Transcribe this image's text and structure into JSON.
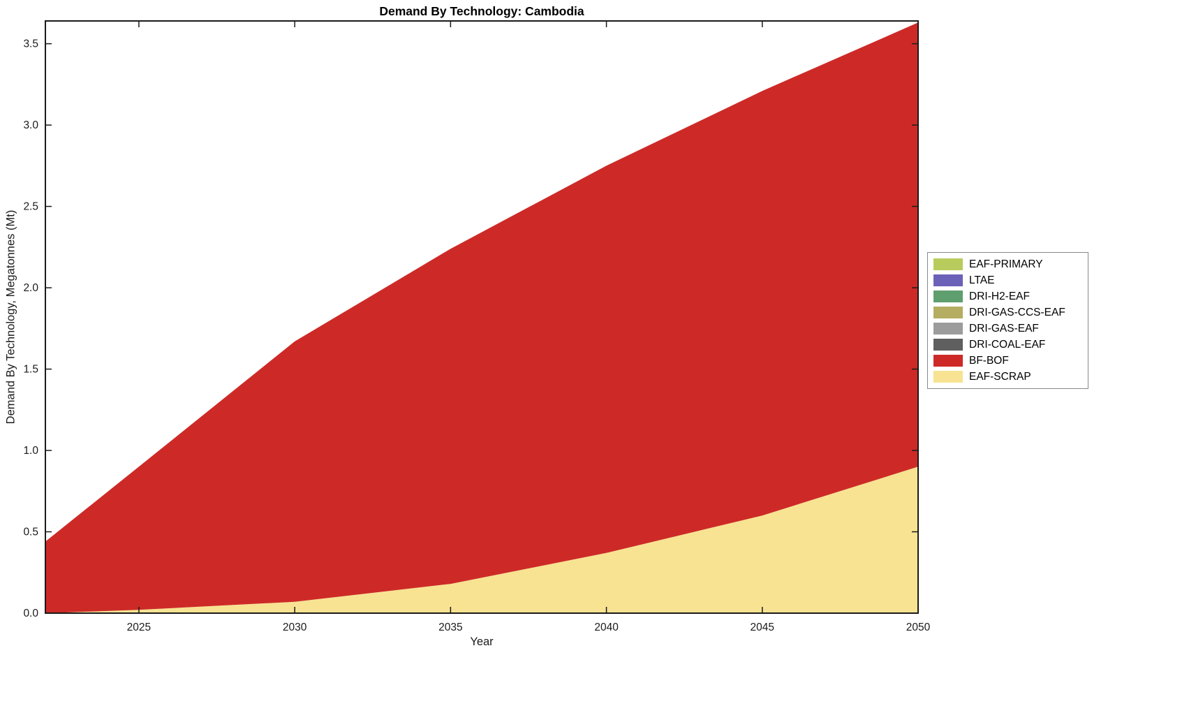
{
  "chart_data": {
    "type": "area",
    "stacked": true,
    "title": "Demand By Technology: Cambodia",
    "xlabel": "Year",
    "ylabel": "Demand By Technology, Megatonnes (Mt)",
    "x": [
      2022,
      2025,
      2030,
      2035,
      2040,
      2045,
      2050
    ],
    "xlim": [
      2022,
      2050
    ],
    "ylim": [
      0,
      3.64
    ],
    "xticks": [
      2025,
      2030,
      2035,
      2040,
      2045,
      2050
    ],
    "yticks": [
      0,
      0.5,
      1,
      1.5,
      2,
      2.5,
      3,
      3.5
    ],
    "grid": false,
    "legend_position": "right-outside",
    "stack_order": [
      "EAF-SCRAP",
      "BF-BOF",
      "DRI-COAL-EAF",
      "DRI-GAS-EAF",
      "DRI-GAS-CCS-EAF",
      "DRI-H2-EAF",
      "LTAE",
      "EAF-PRIMARY"
    ],
    "series": [
      {
        "name": "EAF-SCRAP",
        "color": "#f7e392",
        "values": [
          0.0,
          0.02,
          0.07,
          0.18,
          0.37,
          0.6,
          0.9
        ]
      },
      {
        "name": "BF-BOF",
        "color": "#cd2a27",
        "values": [
          0.44,
          0.88,
          1.6,
          2.06,
          2.38,
          2.61,
          2.73
        ]
      },
      {
        "name": "DRI-COAL-EAF",
        "color": "#5f5f5f",
        "values": [
          0,
          0,
          0,
          0,
          0,
          0,
          0
        ]
      },
      {
        "name": "DRI-GAS-EAF",
        "color": "#9c9c9c",
        "values": [
          0,
          0,
          0,
          0,
          0,
          0,
          0
        ]
      },
      {
        "name": "DRI-GAS-CCS-EAF",
        "color": "#b4ad62",
        "values": [
          0,
          0,
          0,
          0,
          0,
          0,
          0
        ]
      },
      {
        "name": "DRI-H2-EAF",
        "color": "#5f9e6e",
        "values": [
          0,
          0,
          0,
          0,
          0,
          0,
          0
        ]
      },
      {
        "name": "LTAE",
        "color": "#6b61b8",
        "values": [
          0,
          0,
          0,
          0,
          0,
          0,
          0
        ]
      },
      {
        "name": "EAF-PRIMARY",
        "color": "#b8cc5e",
        "values": [
          0,
          0,
          0,
          0,
          0,
          0,
          0
        ]
      }
    ],
    "legend": [
      {
        "label": "EAF-PRIMARY",
        "color": "#b8cc5e"
      },
      {
        "label": "LTAE",
        "color": "#6b61b8"
      },
      {
        "label": "DRI-H2-EAF",
        "color": "#5f9e6e"
      },
      {
        "label": "DRI-GAS-CCS-EAF",
        "color": "#b4ad62"
      },
      {
        "label": "DRI-GAS-EAF",
        "color": "#9c9c9c"
      },
      {
        "label": "DRI-COAL-EAF",
        "color": "#5f5f5f"
      },
      {
        "label": "BF-BOF",
        "color": "#cd2a27"
      },
      {
        "label": "EAF-SCRAP",
        "color": "#f7e392"
      }
    ]
  }
}
